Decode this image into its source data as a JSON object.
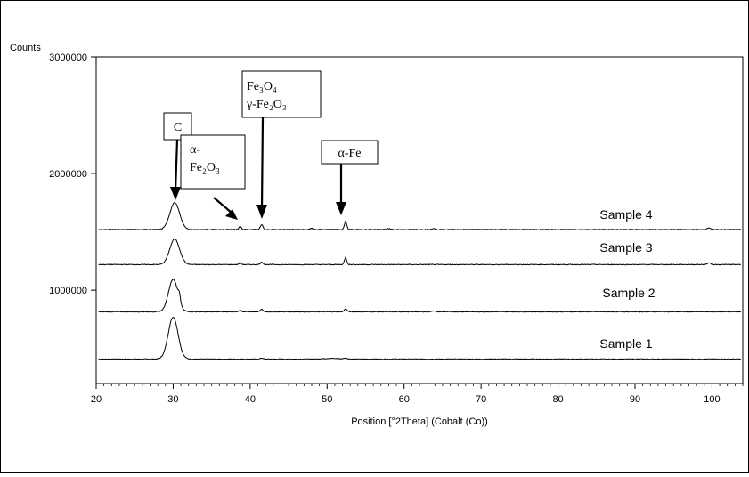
{
  "chart_data": {
    "type": "line",
    "ylabel": "Counts",
    "xlabel": "Position [°2Theta] (Cobalt (Co))",
    "xlim": [
      20,
      104
    ],
    "ylim": [
      200000,
      3000000
    ],
    "x_ticks": [
      20,
      30,
      40,
      50,
      60,
      70,
      80,
      90,
      100
    ],
    "x_tick_labels": [
      "20",
      "30",
      "40",
      "50",
      "60",
      "70",
      "80",
      "90",
      "100"
    ],
    "y_ticks": [
      1000000,
      2000000,
      3000000
    ],
    "y_tick_labels": [
      "1000000",
      "2000000",
      "3000000"
    ],
    "grid": false,
    "series": [
      {
        "name": "Sample 1",
        "baseline": 410000,
        "peaks": [
          {
            "x": 30.0,
            "height": 360000,
            "width": 0.9
          },
          {
            "x": 41.5,
            "height": 8000,
            "width": 0.25
          },
          {
            "x": 50.5,
            "height": 6000,
            "width": 1.5
          },
          {
            "x": 52.4,
            "height": 8000,
            "width": 0.3
          }
        ]
      },
      {
        "name": "Sample 2",
        "baseline": 815000,
        "peaks": [
          {
            "x": 30.0,
            "height": 280000,
            "width": 0.85
          },
          {
            "x": 30.8,
            "height": 60000,
            "width": 0.2
          },
          {
            "x": 38.7,
            "height": 15000,
            "width": 0.2
          },
          {
            "x": 41.5,
            "height": 20000,
            "width": 0.25
          },
          {
            "x": 52.4,
            "height": 25000,
            "width": 0.25
          },
          {
            "x": 63.8,
            "height": 8000,
            "width": 0.3
          }
        ]
      },
      {
        "name": "Sample 3",
        "baseline": 1220000,
        "peaks": [
          {
            "x": 30.2,
            "height": 220000,
            "width": 0.9
          },
          {
            "x": 38.7,
            "height": 15000,
            "width": 0.2
          },
          {
            "x": 41.5,
            "height": 20000,
            "width": 0.25
          },
          {
            "x": 52.4,
            "height": 60000,
            "width": 0.22
          },
          {
            "x": 99.6,
            "height": 15000,
            "width": 0.3
          }
        ]
      },
      {
        "name": "Sample 4",
        "baseline": 1520000,
        "peaks": [
          {
            "x": 30.2,
            "height": 230000,
            "width": 0.9
          },
          {
            "x": 38.7,
            "height": 30000,
            "width": 0.2
          },
          {
            "x": 41.5,
            "height": 40000,
            "width": 0.25
          },
          {
            "x": 48.0,
            "height": 10000,
            "width": 0.3
          },
          {
            "x": 52.4,
            "height": 70000,
            "width": 0.22
          },
          {
            "x": 58.0,
            "height": 8000,
            "width": 0.3
          },
          {
            "x": 63.8,
            "height": 10000,
            "width": 0.3
          },
          {
            "x": 99.6,
            "height": 15000,
            "width": 0.3
          }
        ]
      }
    ],
    "annotations": [
      {
        "id": "C",
        "lines": [
          "C"
        ]
      },
      {
        "id": "alpha-fe2o3",
        "lines": [
          "α-",
          "Fe₂O₃"
        ]
      },
      {
        "id": "fe3o4",
        "lines": [
          "Fe₃O₄",
          "γ-Fe₂O₃"
        ]
      },
      {
        "id": "alpha-fe",
        "lines": [
          "α-Fe"
        ]
      }
    ]
  }
}
